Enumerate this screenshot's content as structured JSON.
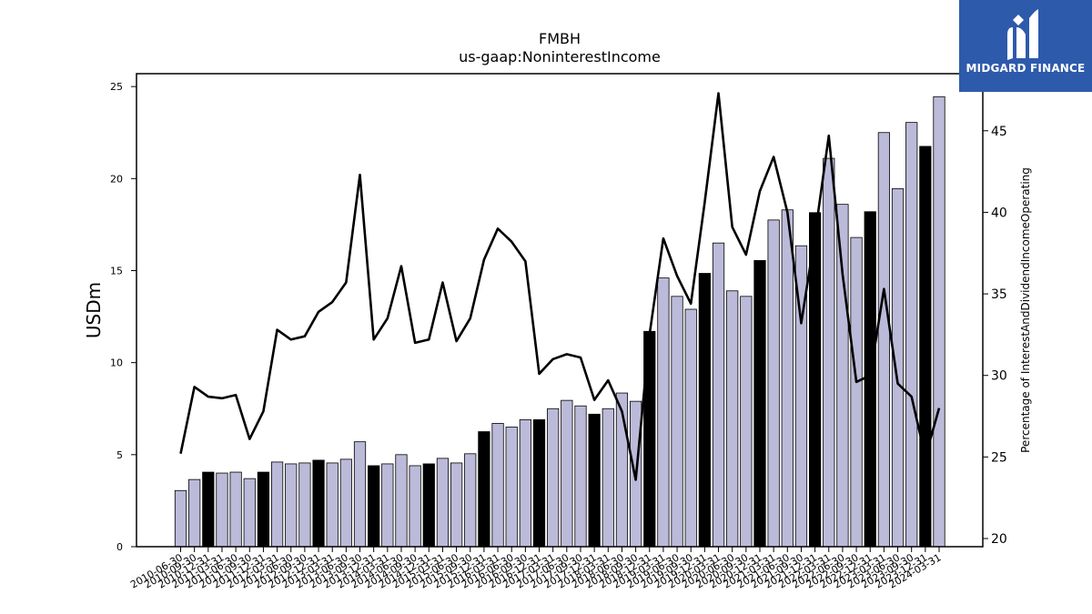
{
  "logo": {
    "text": "MIDGARD FINANCE"
  },
  "chart_data": {
    "type": "bar+line",
    "title": "FMBH",
    "subtitle": "us-gaap:NoninterestIncome",
    "ylabel": "USDm",
    "y2label": "Percentage of InterestAndDividendIncomeOperating",
    "ylim": [
      0,
      25.7
    ],
    "y2lim": [
      19.5,
      48.5
    ],
    "yticks": [
      0,
      5,
      10,
      15,
      20,
      25
    ],
    "y2ticks": [
      20,
      25,
      30,
      35,
      40,
      45
    ],
    "colors": {
      "bar": "#bcbad9",
      "bar_q4": "#000000",
      "line": "#000000"
    },
    "categories": [
      "2010-06-30",
      "2010-09-30",
      "2010-12-31",
      "2011-03-31",
      "2011-06-30",
      "2011-09-30",
      "2011-12-31",
      "2012-03-31",
      "2012-06-30",
      "2012-09-30",
      "2012-12-31",
      "2013-03-31",
      "2013-06-30",
      "2013-09-30",
      "2013-12-31",
      "2014-03-31",
      "2014-06-30",
      "2014-09-30",
      "2014-12-31",
      "2015-03-31",
      "2015-06-30",
      "2015-09-30",
      "2015-12-31",
      "2016-03-31",
      "2016-06-30",
      "2016-09-30",
      "2016-12-31",
      "2017-03-31",
      "2017-06-30",
      "2017-09-30",
      "2017-12-31",
      "2018-03-31",
      "2018-06-30",
      "2018-09-30",
      "2018-12-31",
      "2019-03-31",
      "2019-06-30",
      "2019-09-30",
      "2019-12-31",
      "2020-03-31",
      "2020-06-30",
      "2020-09-30",
      "2020-12-31",
      "2021-03-31",
      "2021-06-30",
      "2021-09-30",
      "2021-12-31",
      "2022-03-31",
      "2022-06-30",
      "2022-09-30",
      "2022-12-31",
      "2023-03-31",
      "2023-06-30",
      "2023-09-30",
      "2023-12-31",
      "2024-03-31"
    ],
    "series": [
      {
        "type": "bar",
        "values": [
          3.05,
          3.65,
          4.05,
          4.0,
          4.05,
          3.7,
          4.05,
          4.6,
          4.5,
          4.55,
          4.7,
          4.55,
          4.75,
          5.7,
          4.4,
          4.5,
          5.0,
          4.4,
          4.5,
          4.8,
          4.55,
          5.05,
          6.25,
          6.7,
          6.5,
          6.9,
          6.9,
          7.5,
          7.95,
          7.65,
          7.2,
          7.5,
          8.35,
          7.9,
          11.7,
          14.6,
          13.6,
          12.9,
          14.85,
          16.5,
          13.9,
          13.6,
          15.55,
          17.75,
          18.3,
          16.35,
          18.15,
          21.1,
          18.6,
          16.8,
          18.2,
          22.5,
          19.45,
          23.05,
          21.75,
          24.45
        ]
      },
      {
        "type": "line",
        "values": [
          25.2,
          29.3,
          28.7,
          28.6,
          28.8,
          26.1,
          27.8,
          32.8,
          32.2,
          32.4,
          33.9,
          34.5,
          35.7,
          42.3,
          32.2,
          33.5,
          36.7,
          32.0,
          32.2,
          35.7,
          32.1,
          33.5,
          37.1,
          39.0,
          38.2,
          37.0,
          30.1,
          31.0,
          31.3,
          31.1,
          28.5,
          29.7,
          27.8,
          23.6,
          32.5,
          38.4,
          36.1,
          34.4,
          40.6,
          47.3,
          39.1,
          37.4,
          41.3,
          43.4,
          40.0,
          33.2,
          38.6,
          44.7,
          36.2,
          29.6,
          30.0,
          35.3,
          29.5,
          28.7,
          25.0,
          28.0
        ]
      }
    ]
  }
}
